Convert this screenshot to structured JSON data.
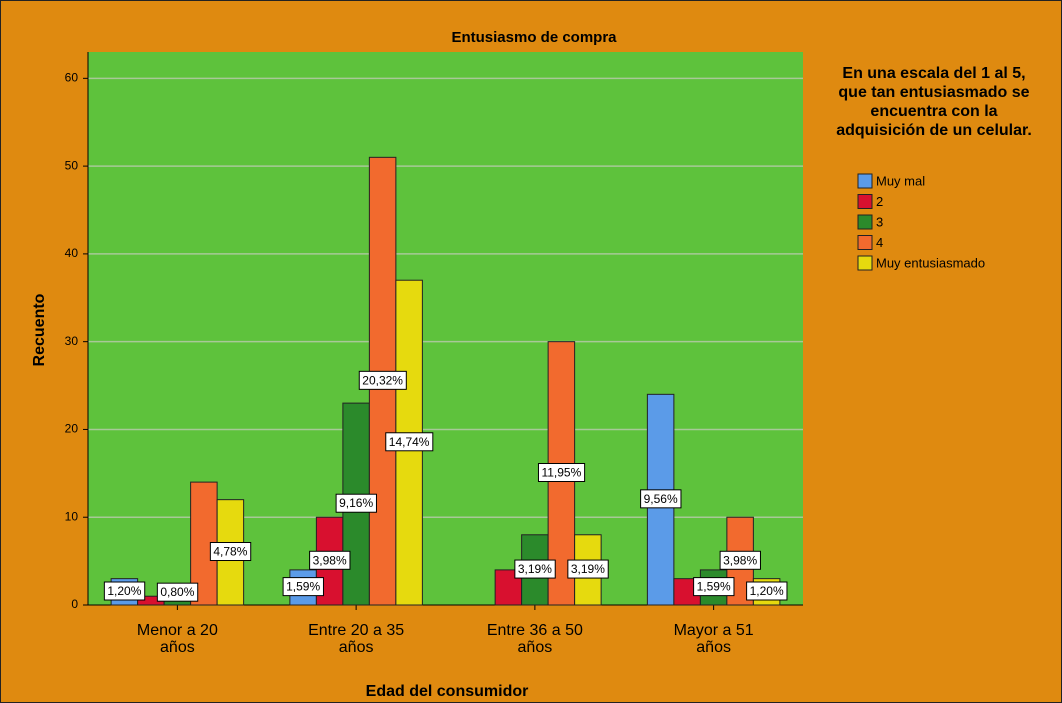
{
  "chart_data": {
    "type": "bar",
    "title": "Entusiasmo de compra",
    "x_label": "Edad del consumidor",
    "y_label": "Recuento",
    "legend_title": "En una escala del 1 al 5, que tan entusiasmado se encuentra con la adquisición de un celular.",
    "legend_position": "right",
    "categories": [
      "Menor a 20 años",
      "Entre 20 a 35 años",
      "Entre 36 a 50 años",
      "Mayor a 51 años"
    ],
    "series": [
      {
        "name": "Muy mal",
        "color": "#5b9be8",
        "values": [
          3,
          4,
          0,
          24
        ],
        "value_labels": [
          "1,20%",
          "1,59%",
          null,
          "9,56%"
        ]
      },
      {
        "name": "2",
        "color": "#d8102f",
        "values": [
          1,
          10,
          4,
          3
        ],
        "value_labels": [
          null,
          "3,98%",
          null,
          null
        ]
      },
      {
        "name": "3",
        "color": "#2b8a2b",
        "values": [
          2,
          23,
          8,
          4
        ],
        "value_labels": [
          "0,80%",
          "9,16%",
          "3,19%",
          "1,59%"
        ]
      },
      {
        "name": "4",
        "color": "#f26a2e",
        "values": [
          14,
          51,
          30,
          10
        ],
        "value_labels": [
          null,
          "20,32%",
          "11,95%",
          "3,98%"
        ]
      },
      {
        "name": "Muy entusiasmado",
        "color": "#e6da0e",
        "values": [
          12,
          37,
          8,
          3
        ],
        "value_labels": [
          "4,78%",
          "14,74%",
          "3,19%",
          "1,20%"
        ]
      }
    ],
    "ylim": [
      0,
      63
    ],
    "yticks": [
      0,
      10,
      20,
      30,
      40,
      50,
      60
    ],
    "grid": true
  }
}
